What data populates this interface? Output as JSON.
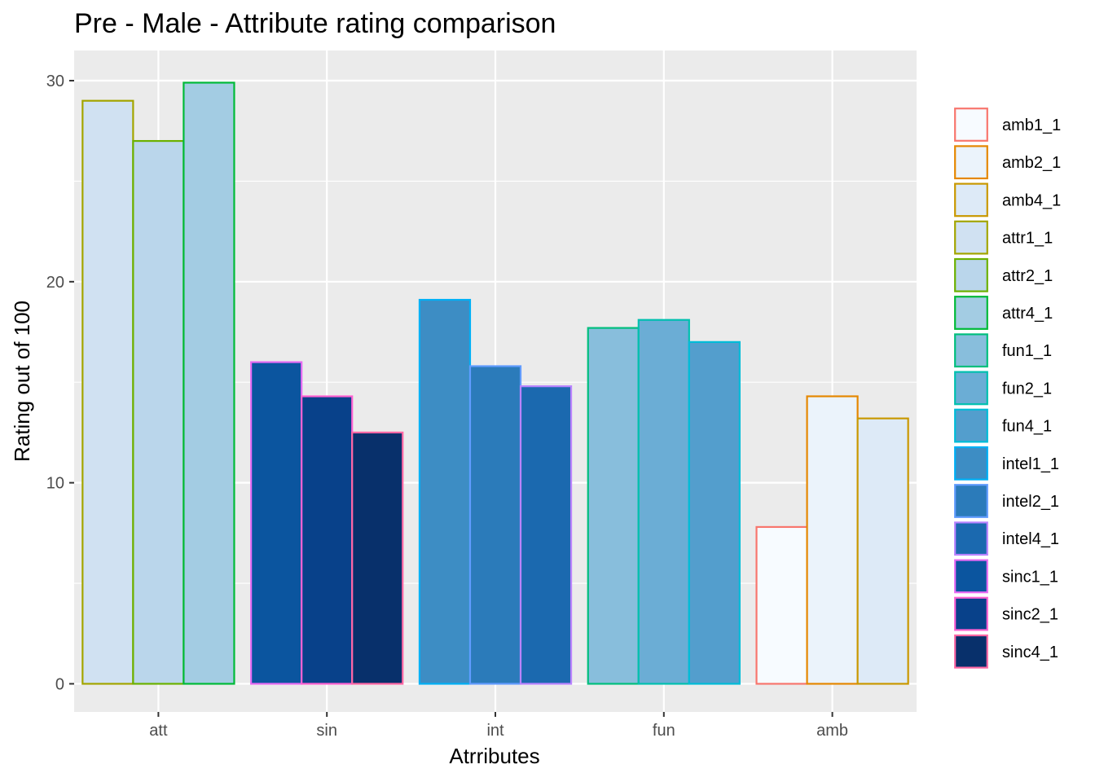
{
  "chart_data": {
    "type": "bar",
    "title": "Pre - Male - Attribute rating comparison",
    "xlabel": "Atrributes",
    "ylabel": "Rating out of 100",
    "categories": [
      "att",
      "sin",
      "int",
      "fun",
      "amb"
    ],
    "ylim": [
      -1.4,
      31.5
    ],
    "yticks": [
      0,
      10,
      20,
      30
    ],
    "grid": true,
    "legend_position": "right",
    "bars": [
      {
        "category": "att",
        "series": "attr1_1",
        "value": 29.0
      },
      {
        "category": "att",
        "series": "attr2_1",
        "value": 27.0
      },
      {
        "category": "att",
        "series": "attr4_1",
        "value": 29.9
      },
      {
        "category": "sin",
        "series": "sinc1_1",
        "value": 16.0
      },
      {
        "category": "sin",
        "series": "sinc2_1",
        "value": 14.3
      },
      {
        "category": "sin",
        "series": "sinc4_1",
        "value": 12.5
      },
      {
        "category": "int",
        "series": "intel1_1",
        "value": 19.1
      },
      {
        "category": "int",
        "series": "intel2_1",
        "value": 15.8
      },
      {
        "category": "int",
        "series": "intel4_1",
        "value": 14.8
      },
      {
        "category": "fun",
        "series": "fun1_1",
        "value": 17.7
      },
      {
        "category": "fun",
        "series": "fun2_1",
        "value": 18.1
      },
      {
        "category": "fun",
        "series": "fun4_1",
        "value": 17.0
      },
      {
        "category": "amb",
        "series": "amb1_1",
        "value": 7.8
      },
      {
        "category": "amb",
        "series": "amb2_1",
        "value": 14.3
      },
      {
        "category": "amb",
        "series": "amb4_1",
        "value": 13.2
      }
    ],
    "series": [
      {
        "name": "amb1_1",
        "fill": "#f7fbff",
        "stroke": "#f8766d"
      },
      {
        "name": "amb2_1",
        "fill": "#ebf3fb",
        "stroke": "#e58700"
      },
      {
        "name": "amb4_1",
        "fill": "#ddeaf7",
        "stroke": "#c99800"
      },
      {
        "name": "attr1_1",
        "fill": "#d0e1f2",
        "stroke": "#a3a500"
      },
      {
        "name": "attr2_1",
        "fill": "#bad6eb",
        "stroke": "#6bb100"
      },
      {
        "name": "attr4_1",
        "fill": "#a3cce3",
        "stroke": "#00ba38"
      },
      {
        "name": "fun1_1",
        "fill": "#88bedc",
        "stroke": "#00bf7d"
      },
      {
        "name": "fun2_1",
        "fill": "#6badd5",
        "stroke": "#00c0af"
      },
      {
        "name": "fun4_1",
        "fill": "#539ecd",
        "stroke": "#00bcd8"
      },
      {
        "name": "intel1_1",
        "fill": "#3d8dc4",
        "stroke": "#00b0f6"
      },
      {
        "name": "intel2_1",
        "fill": "#2b7bba",
        "stroke": "#619cff"
      },
      {
        "name": "intel4_1",
        "fill": "#1b69af",
        "stroke": "#b983ff"
      },
      {
        "name": "sinc1_1",
        "fill": "#0b559f",
        "stroke": "#e76bf3"
      },
      {
        "name": "sinc2_1",
        "fill": "#08418a",
        "stroke": "#fd61d1"
      },
      {
        "name": "sinc4_1",
        "fill": "#08306b",
        "stroke": "#ff67a4"
      }
    ],
    "panel_background": "#ebebeb",
    "grid_color": "#ffffff"
  }
}
